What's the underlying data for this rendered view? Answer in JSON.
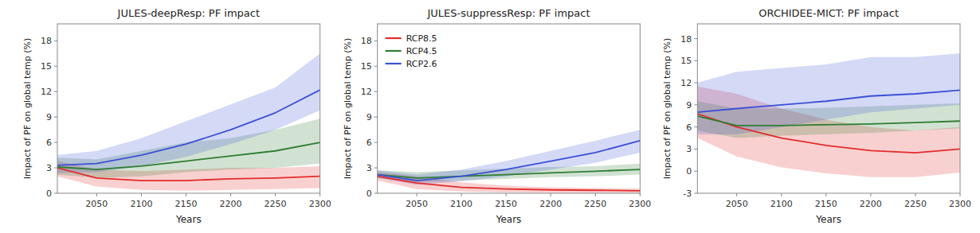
{
  "chart_data": [
    {
      "type": "line",
      "title": "JULES-deepResp: PF impact",
      "xlabel": "Years",
      "ylabel": "Impact of PF on global temp (%)",
      "x": [
        2006,
        2050,
        2100,
        2150,
        2200,
        2250,
        2300
      ],
      "xlim": [
        2006,
        2300
      ],
      "xticks": [
        2050,
        2100,
        2150,
        2200,
        2250,
        2300
      ],
      "ylim": [
        0,
        20
      ],
      "yticks": [
        0,
        3,
        6,
        9,
        12,
        15,
        18
      ],
      "grid": false,
      "series": [
        {
          "color": "#e32b2b",
          "values": [
            3.0,
            1.8,
            1.5,
            1.5,
            1.7,
            1.8,
            2.0
          ],
          "lo": [
            2.0,
            0.8,
            0.4,
            0.3,
            0.4,
            0.5,
            0.6
          ],
          "hi": [
            3.8,
            2.8,
            2.6,
            2.8,
            3.0,
            3.0,
            3.2
          ]
        },
        {
          "color": "#2e7d32",
          "values": [
            3.1,
            2.8,
            3.2,
            3.8,
            4.4,
            5.0,
            6.0
          ],
          "lo": [
            2.2,
            1.8,
            2.0,
            2.5,
            2.8,
            3.0,
            3.5
          ],
          "hi": [
            4.2,
            4.0,
            5.0,
            6.0,
            6.5,
            7.5,
            8.8
          ]
        },
        {
          "color": "#3c50d4",
          "values": [
            3.3,
            3.5,
            4.5,
            5.8,
            7.5,
            9.5,
            12.2
          ],
          "lo": [
            2.4,
            2.5,
            3.2,
            4.3,
            5.8,
            7.5,
            9.8
          ],
          "hi": [
            4.5,
            5.0,
            6.5,
            8.5,
            10.5,
            12.5,
            16.5
          ]
        }
      ]
    },
    {
      "type": "line",
      "title": "JULES-suppressResp: PF impact",
      "xlabel": "Years",
      "ylabel": "Impact of PF on global temp (%)",
      "x": [
        2006,
        2050,
        2100,
        2150,
        2200,
        2250,
        2300
      ],
      "xlim": [
        2006,
        2300
      ],
      "xticks": [
        2050,
        2100,
        2150,
        2200,
        2250,
        2300
      ],
      "ylim": [
        0,
        20
      ],
      "yticks": [
        0,
        3,
        6,
        9,
        12,
        15,
        18
      ],
      "grid": false,
      "legend": "upper left",
      "series": [
        {
          "name": "RCP8.5",
          "color": "#e32b2b",
          "values": [
            2.0,
            1.2,
            0.7,
            0.5,
            0.4,
            0.35,
            0.3
          ],
          "lo": [
            1.5,
            0.5,
            0.2,
            0.1,
            0.05,
            0.02,
            0.0
          ],
          "hi": [
            2.5,
            2.0,
            1.3,
            0.9,
            0.7,
            0.6,
            0.55
          ]
        },
        {
          "name": "RCP4.5",
          "color": "#2e7d32",
          "values": [
            2.2,
            1.8,
            2.0,
            2.2,
            2.4,
            2.6,
            2.8
          ],
          "lo": [
            1.8,
            1.3,
            1.5,
            1.7,
            1.9,
            2.0,
            2.2
          ],
          "hi": [
            2.7,
            2.5,
            2.7,
            2.9,
            3.1,
            3.2,
            3.5
          ]
        },
        {
          "name": "RCP2.6",
          "color": "#3c50d4",
          "values": [
            2.2,
            1.5,
            2.0,
            2.8,
            3.8,
            4.8,
            6.2
          ],
          "lo": [
            1.8,
            1.0,
            1.4,
            2.0,
            2.8,
            3.6,
            4.8
          ],
          "hi": [
            2.7,
            2.2,
            2.8,
            3.8,
            5.0,
            6.2,
            7.5
          ]
        }
      ]
    },
    {
      "type": "line",
      "title": "ORCHIDEE-MICT: PF impact",
      "xlabel": "Years",
      "ylabel": "Impact of PF on global temp (%)",
      "x": [
        2006,
        2050,
        2100,
        2150,
        2200,
        2250,
        2300
      ],
      "xlim": [
        2006,
        2300
      ],
      "xticks": [
        2050,
        2100,
        2150,
        2200,
        2250,
        2300
      ],
      "ylim": [
        -3,
        20
      ],
      "yticks": [
        -3,
        0,
        3,
        6,
        9,
        12,
        15,
        18
      ],
      "grid": false,
      "series": [
        {
          "color": "#e32b2b",
          "values": [
            7.8,
            6.0,
            4.5,
            3.5,
            2.8,
            2.5,
            3.0
          ],
          "lo": [
            4.5,
            2.0,
            0.5,
            -0.3,
            -0.8,
            -0.8,
            -0.2
          ],
          "hi": [
            11.5,
            10.5,
            8.5,
            7.0,
            6.0,
            5.5,
            6.0
          ]
        },
        {
          "color": "#2e7d32",
          "values": [
            7.5,
            6.2,
            6.2,
            6.3,
            6.4,
            6.6,
            6.8
          ],
          "lo": [
            5.5,
            4.5,
            4.8,
            5.0,
            5.2,
            5.5,
            5.8
          ],
          "hi": [
            9.5,
            8.5,
            8.5,
            8.6,
            8.8,
            9.0,
            9.2
          ]
        },
        {
          "color": "#3c50d4",
          "values": [
            8.0,
            8.5,
            9.0,
            9.5,
            10.2,
            10.5,
            11.0
          ],
          "lo": [
            5.0,
            5.0,
            6.0,
            7.0,
            8.0,
            8.5,
            9.0
          ],
          "hi": [
            12.0,
            13.5,
            14.0,
            14.5,
            15.5,
            15.5,
            16.0
          ]
        }
      ]
    }
  ]
}
